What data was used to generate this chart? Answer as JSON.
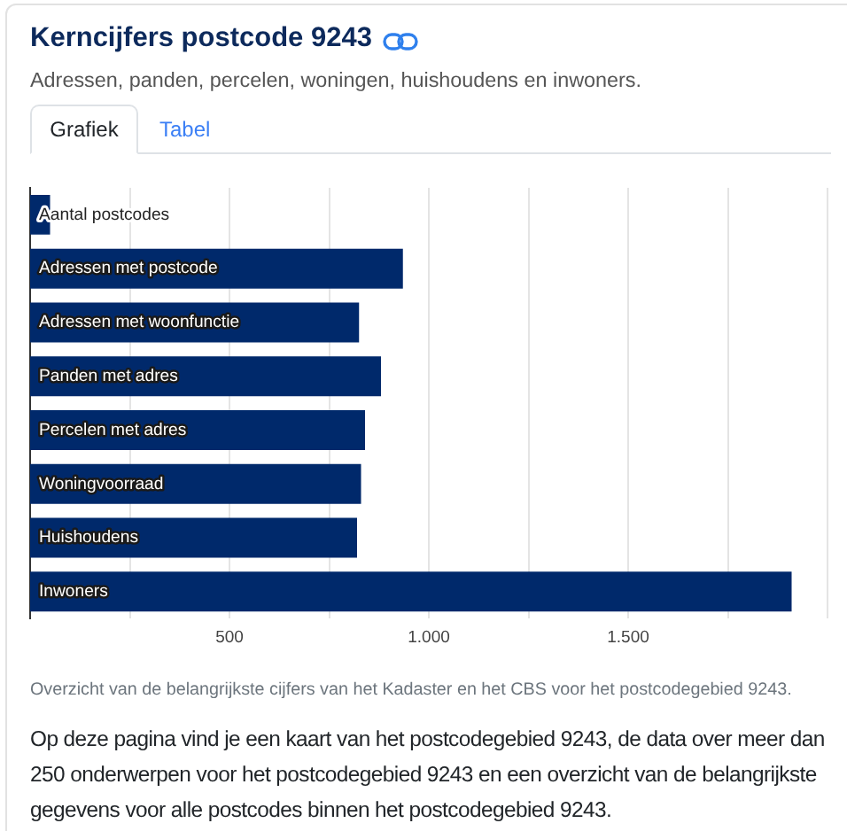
{
  "chart_data": {
    "type": "bar",
    "orientation": "horizontal",
    "title": "Kerncijfers postcode 9243",
    "subtitle": "Adressen, panden, percelen, woningen, huishoudens en inwoners.",
    "categories": [
      "Aantal postcodes",
      "Adressen met postcode",
      "Adressen met woonfunctie",
      "Panden met adres",
      "Percelen met adres",
      "Woningvoorraad",
      "Huishoudens",
      "Inwoners"
    ],
    "values": [
      50,
      935,
      825,
      880,
      840,
      830,
      820,
      1910
    ],
    "color": "#00296b",
    "xlim": [
      0,
      2000
    ],
    "xticks": [
      {
        "value": 250,
        "label": null
      },
      500,
      {
        "value": 750,
        "label": null
      },
      {
        "value": 1000,
        "label": "1.000"
      },
      {
        "value": 1250,
        "label": null
      },
      {
        "value": 1500,
        "label": "1.500"
      },
      {
        "value": 1750,
        "label": null
      },
      {
        "value": 2000,
        "label": null
      }
    ],
    "grid": "x",
    "annotations": [
      "Grafiek",
      "Tabel",
      "Overzicht van de belangrijkste cijfers van het Kadaster en het CBS voor het postcodegebied 9243.",
      "Op deze pagina vind je een kaart van het postcodegebied 9243, de data over meer dan 250 onderwerpen voor het postcodegebied 9243 en een overzicht van de belangrijkste gegevens voor alle postcodes binnen het postcodegebied 9243."
    ]
  }
}
